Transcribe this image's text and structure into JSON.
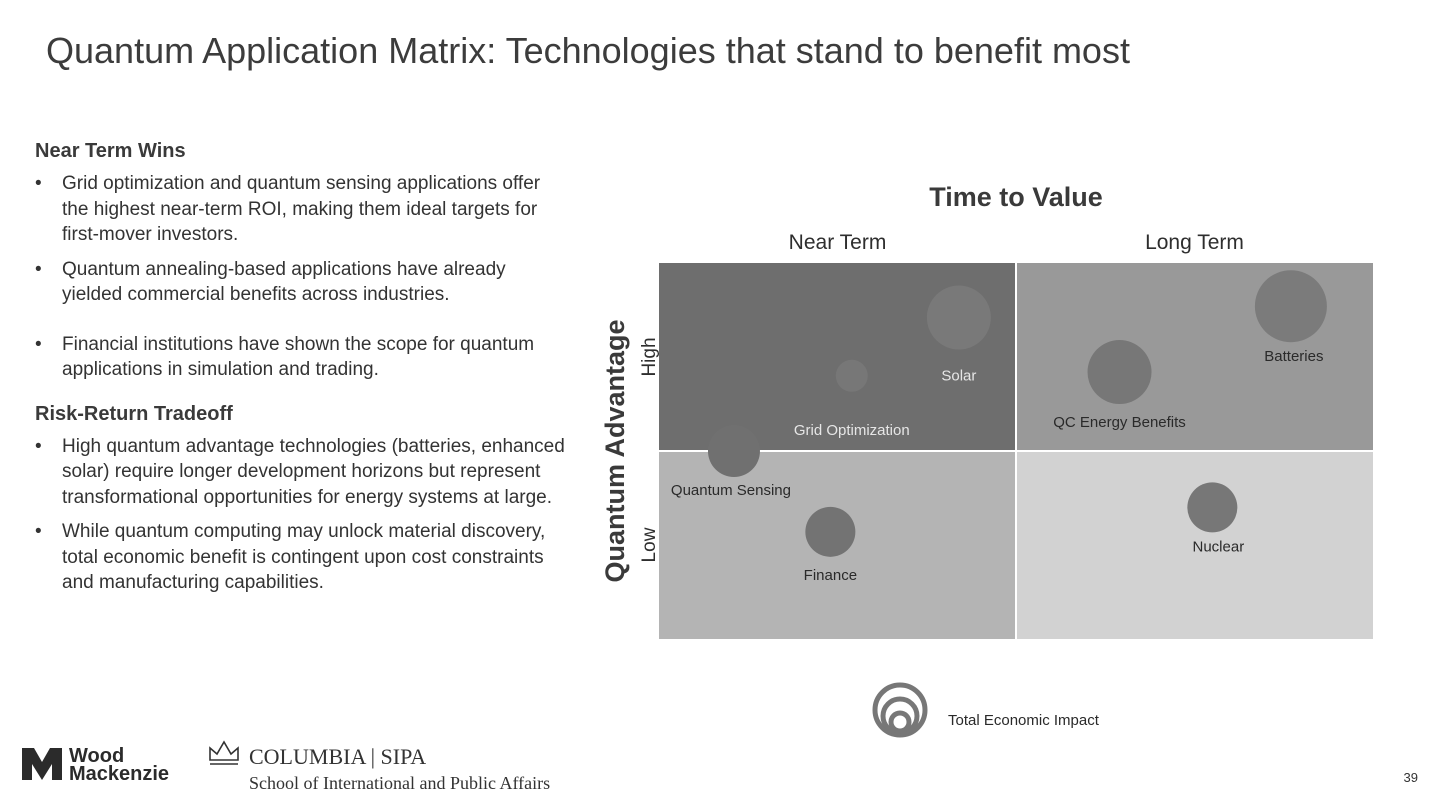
{
  "page": {
    "title": "Quantum Application Matrix: Technologies that stand to benefit most",
    "page_number": "39"
  },
  "left": {
    "sections": [
      {
        "heading": "Near Term Wins",
        "bullets": [
          "Grid optimization and quantum sensing applications offer the highest near-term ROI, making them ideal targets for first-mover investors.",
          "Quantum annealing-based applications have already yielded commercial benefits across industries.",
          "Financial institutions have shown the scope for quantum applications in simulation and trading."
        ]
      },
      {
        "heading": "Risk-Return Tradeoff",
        "bullets": [
          "High quantum advantage technologies (batteries, enhanced solar) require longer development horizons but represent transformational opportunities for energy systems at large.",
          "While quantum computing may unlock material discovery, total economic benefit is contingent upon cost constraints and manufacturing capabilities."
        ]
      }
    ]
  },
  "chart_data": {
    "type": "scatter",
    "title": "Time to Value",
    "xlabel": "Time to Value",
    "ylabel": "Quantum Advantage",
    "x_categories": [
      "Near Term",
      "Long Term"
    ],
    "y_categories": [
      "Low",
      "High"
    ],
    "xlim": [
      0,
      2
    ],
    "ylim": [
      0,
      2
    ],
    "quadrant_colors": {
      "near_high": "#6e6e6e",
      "long_high": "#999999",
      "near_low": "#b4b4b4",
      "long_low": "#d2d2d2"
    },
    "size_legend": "Total Economic Impact",
    "points": [
      {
        "name": "Solar",
        "x": 0.84,
        "y": 1.71,
        "size": 32,
        "color": "#797979",
        "label_color": "#e6e6e6"
      },
      {
        "name": "Grid Optimization",
        "x": 0.54,
        "y": 1.4,
        "size": 16,
        "color": "#777777",
        "label_color": "#e6e6e6"
      },
      {
        "name": "Quantum Sensing",
        "x": 0.21,
        "y": 1.0,
        "size": 26,
        "color": "#707070",
        "label_color": "#2a2a2a"
      },
      {
        "name": "Finance",
        "x": 0.48,
        "y": 0.57,
        "size": 25,
        "color": "#737373",
        "label_color": "#2a2a2a"
      },
      {
        "name": "Batteries",
        "x": 1.77,
        "y": 1.77,
        "size": 36,
        "color": "#7b7b7b",
        "label_color": "#2a2a2a"
      },
      {
        "name": "QC Energy Benefits",
        "x": 1.29,
        "y": 1.42,
        "size": 32,
        "color": "#777777",
        "label_color": "#2a2a2a"
      },
      {
        "name": "Nuclear",
        "x": 1.55,
        "y": 0.7,
        "size": 25,
        "color": "#777777",
        "label_color": "#2a2a2a"
      }
    ]
  },
  "logos": {
    "wood_mackenzie": [
      "Wood",
      "Mackenzie"
    ],
    "columbia": "COLUMBIA | SIPA",
    "columbia_sub": "School of International and Public Affairs"
  }
}
